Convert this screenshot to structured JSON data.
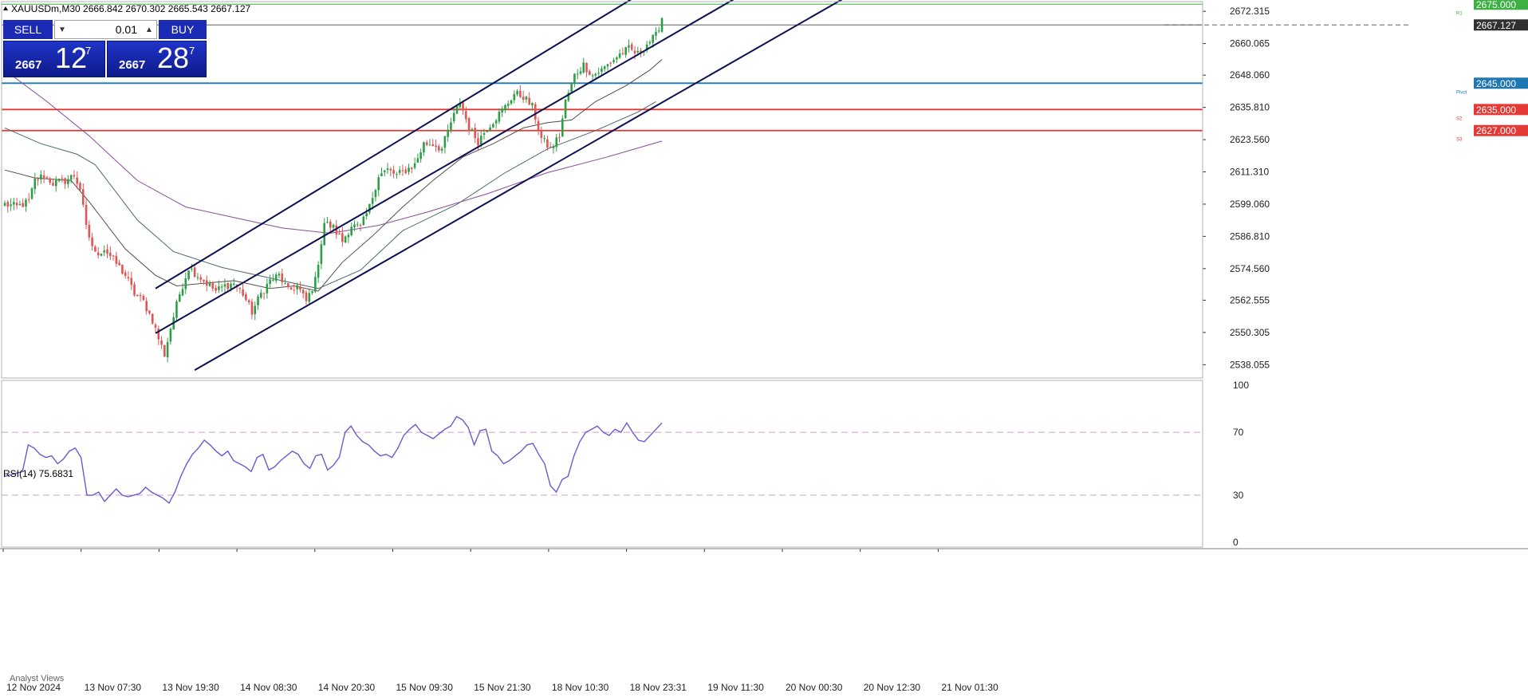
{
  "header": {
    "symbol_line": "XAUUSDm,M30  2666.842 2670.302 2665.543 2667.127"
  },
  "trade_panel": {
    "sell_label": "SELL",
    "buy_label": "BUY",
    "lot_value": "0.01",
    "bid_small": "2667",
    "bid_big": "12",
    "bid_sup": "7",
    "ask_small": "2667",
    "ask_big": "28",
    "ask_sup": "7"
  },
  "colors": {
    "bull": "#2e9e46",
    "bear": "#e05555",
    "channel": "#0b1150",
    "ma_fast": "#5a4a4a",
    "ma_mid": "#4a6a6a",
    "ma_slow": "#8a4a9a",
    "rsi_line": "#6a5acd",
    "resistance_green": "#3cb043",
    "pivot_blue": "#1f77b4",
    "support_red": "#e53935",
    "current_price_line": "#606060"
  },
  "chart_data": [
    {
      "type": "candlestick",
      "title": "XAUUSDm,M30",
      "ohlc_header": {
        "open": 2666.842,
        "high": 2670.302,
        "low": 2665.543,
        "close": 2667.127
      },
      "price_axis_ticks": [
        "2672.315",
        "2660.065",
        "2648.060",
        "2635.810",
        "2623.560",
        "2611.310",
        "2599.060",
        "2586.810",
        "2574.560",
        "2562.555",
        "2550.305",
        "2538.055"
      ],
      "time_axis_labels": [
        "12 Nov 2024",
        "13 Nov 07:30",
        "13 Nov 19:30",
        "14 Nov 08:30",
        "14 Nov 20:30",
        "15 Nov 09:30",
        "15 Nov 21:30",
        "18 Nov 10:30",
        "18 Nov 23:31",
        "19 Nov 11:30",
        "20 Nov 00:30",
        "20 Nov 12:30",
        "21 Nov 01:30"
      ],
      "ylim": [
        2533,
        2676
      ],
      "current_price": 2667.127,
      "horizontal_levels": [
        {
          "price": 2675.0,
          "label": "2675.000",
          "tag": "R1",
          "color_key": "resistance_green"
        },
        {
          "price": 2645.0,
          "label": "2645.000",
          "tag": "Pivot",
          "color_key": "pivot_blue"
        },
        {
          "price": 2635.0,
          "label": "2635.000",
          "tag": "S2",
          "color_key": "support_red"
        },
        {
          "price": 2627.0,
          "label": "2627.000",
          "tag": "S3",
          "color_key": "support_red"
        }
      ],
      "current_price_label": "2667.127",
      "price_anchors": [
        [
          0,
          2599
        ],
        [
          4,
          2598
        ],
        [
          8,
          2600
        ],
        [
          10,
          2608
        ],
        [
          13,
          2610
        ],
        [
          16,
          2607
        ],
        [
          20,
          2608
        ],
        [
          23,
          2610
        ],
        [
          25,
          2605
        ],
        [
          27,
          2590
        ],
        [
          30,
          2580
        ],
        [
          33,
          2582
        ],
        [
          36,
          2578
        ],
        [
          40,
          2572
        ],
        [
          43,
          2565
        ],
        [
          46,
          2562
        ],
        [
          49,
          2555
        ],
        [
          51,
          2548
        ],
        [
          53,
          2542
        ],
        [
          55,
          2552
        ],
        [
          58,
          2565
        ],
        [
          61,
          2575
        ],
        [
          64,
          2572
        ],
        [
          67,
          2569
        ],
        [
          70,
          2566
        ],
        [
          73,
          2568
        ],
        [
          76,
          2569
        ],
        [
          79,
          2565
        ],
        [
          82,
          2558
        ],
        [
          85,
          2565
        ],
        [
          88,
          2570
        ],
        [
          91,
          2572
        ],
        [
          94,
          2566
        ],
        [
          97,
          2568
        ],
        [
          100,
          2562
        ],
        [
          103,
          2570
        ],
        [
          106,
          2592
        ],
        [
          109,
          2590
        ],
        [
          112,
          2585
        ],
        [
          115,
          2591
        ],
        [
          118,
          2590
        ],
        [
          121,
          2598
        ],
        [
          124,
          2610
        ],
        [
          127,
          2612
        ],
        [
          130,
          2610
        ],
        [
          133,
          2612
        ],
        [
          136,
          2614
        ],
        [
          139,
          2622
        ],
        [
          142,
          2622
        ],
        [
          145,
          2620
        ],
        [
          148,
          2630
        ],
        [
          151,
          2638
        ],
        [
          154,
          2628
        ],
        [
          157,
          2623
        ],
        [
          160,
          2628
        ],
        [
          163,
          2632
        ],
        [
          166,
          2636
        ],
        [
          169,
          2641
        ],
        [
          172,
          2640
        ],
        [
          175,
          2636
        ],
        [
          178,
          2624
        ],
        [
          181,
          2620
        ],
        [
          184,
          2625
        ],
        [
          186,
          2638
        ],
        [
          189,
          2648
        ],
        [
          192,
          2652
        ],
        [
          195,
          2648
        ],
        [
          198,
          2650
        ],
        [
          201,
          2653
        ],
        [
          204,
          2656
        ],
        [
          207,
          2658
        ],
        [
          210,
          2656
        ],
        [
          213,
          2660
        ],
        [
          216,
          2663
        ],
        [
          218,
          2670
        ]
      ],
      "moving_averages": [
        {
          "name": "fast",
          "color_key": "ma_fast",
          "points": [
            [
              0,
              2612
            ],
            [
              10,
              2609
            ],
            [
              22,
              2608
            ],
            [
              28,
              2600
            ],
            [
              40,
              2582
            ],
            [
              50,
              2572
            ],
            [
              57,
              2568
            ],
            [
              66,
              2569
            ],
            [
              76,
              2570
            ],
            [
              88,
              2567
            ],
            [
              96,
              2568
            ],
            [
              104,
              2566
            ],
            [
              112,
              2577
            ],
            [
              122,
              2587
            ],
            [
              132,
              2598
            ],
            [
              142,
              2608
            ],
            [
              152,
              2617
            ],
            [
              162,
              2622
            ],
            [
              172,
              2628
            ],
            [
              180,
              2630
            ],
            [
              188,
              2631
            ],
            [
              196,
              2638
            ],
            [
              206,
              2644
            ],
            [
              214,
              2650
            ],
            [
              218,
              2654
            ]
          ]
        },
        {
          "name": "mid",
          "color_key": "ma_mid",
          "points": [
            [
              0,
              2628
            ],
            [
              12,
              2622
            ],
            [
              24,
              2618
            ],
            [
              30,
              2614
            ],
            [
              44,
              2593
            ],
            [
              56,
              2581
            ],
            [
              72,
              2575
            ],
            [
              88,
              2571
            ],
            [
              104,
              2567
            ],
            [
              118,
              2574
            ],
            [
              132,
              2589
            ],
            [
              150,
              2599
            ],
            [
              166,
              2611
            ],
            [
              180,
              2620
            ],
            [
              196,
              2627
            ],
            [
              210,
              2634
            ],
            [
              216,
              2638
            ]
          ]
        },
        {
          "name": "slow",
          "color_key": "ma_slow",
          "points": [
            [
              0,
              2650
            ],
            [
              14,
              2638
            ],
            [
              28,
              2625
            ],
            [
              44,
              2608
            ],
            [
              60,
              2598
            ],
            [
              76,
              2594
            ],
            [
              92,
              2590
            ],
            [
              108,
              2588
            ],
            [
              124,
              2591
            ],
            [
              140,
              2596
            ],
            [
              160,
              2603
            ],
            [
              180,
              2611
            ],
            [
              200,
              2617
            ],
            [
              218,
              2623
            ]
          ]
        }
      ],
      "channel_lines": [
        {
          "from": [
            50,
            2567
          ],
          "to": [
            208,
            2677
          ]
        },
        {
          "from": [
            50,
            2550
          ],
          "to": [
            242,
            2677
          ]
        },
        {
          "from": [
            63,
            2536
          ],
          "to": [
            278,
            2677
          ]
        }
      ]
    },
    {
      "type": "line",
      "title": "RSI(14) 75.6831",
      "ylim": [
        0,
        100
      ],
      "axis_ticks": [
        "100",
        "70",
        "30",
        "0"
      ],
      "levels": [
        70,
        30
      ],
      "series": [
        {
          "name": "RSI(14)",
          "values": [
            42,
            43,
            44,
            45,
            62,
            60,
            56,
            54,
            55,
            50,
            53,
            58,
            60,
            54,
            30,
            30,
            32,
            26,
            30,
            34,
            30,
            29,
            30,
            31,
            35,
            32,
            30,
            28,
            25,
            32,
            42,
            50,
            56,
            60,
            65,
            62,
            58,
            55,
            58,
            52,
            50,
            48,
            45,
            54,
            56,
            46,
            48,
            52,
            55,
            58,
            56,
            50,
            47,
            55,
            56,
            46,
            49,
            54,
            70,
            74,
            68,
            64,
            62,
            58,
            55,
            56,
            54,
            60,
            68,
            72,
            75,
            70,
            68,
            66,
            69,
            72,
            74,
            80,
            78,
            73,
            62,
            71,
            72,
            58,
            55,
            50,
            52,
            55,
            58,
            62,
            63,
            56,
            50,
            36,
            32,
            40,
            42,
            55,
            64,
            70,
            72,
            74,
            70,
            68,
            72,
            70,
            76,
            70,
            65,
            64,
            68,
            72,
            76
          ]
        }
      ]
    }
  ],
  "footer": {
    "analyst_views": "Analyst Views"
  }
}
